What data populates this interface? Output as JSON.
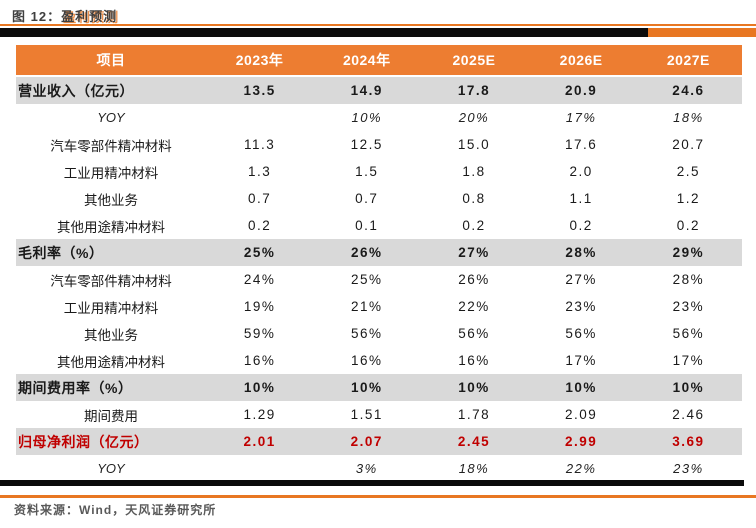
{
  "figure": {
    "label": "图 12：",
    "title": "盈利预测"
  },
  "table": {
    "columns": [
      "项目",
      "2023年",
      "2024年",
      "2025E",
      "2026E",
      "2027E"
    ],
    "rows": [
      {
        "label": "营业收入（亿元）",
        "type": "section",
        "values": [
          "13.5",
          "14.9",
          "17.8",
          "20.9",
          "24.6"
        ]
      },
      {
        "label": "YOY",
        "type": "yoy",
        "values": [
          "",
          "10%",
          "20%",
          "17%",
          "18%"
        ]
      },
      {
        "label": "汽车零部件精冲材料",
        "type": "sub",
        "values": [
          "11.3",
          "12.5",
          "15.0",
          "17.6",
          "20.7"
        ]
      },
      {
        "label": "工业用精冲材料",
        "type": "sub",
        "values": [
          "1.3",
          "1.5",
          "1.8",
          "2.0",
          "2.5"
        ]
      },
      {
        "label": "其他业务",
        "type": "sub",
        "values": [
          "0.7",
          "0.7",
          "0.8",
          "1.1",
          "1.2"
        ]
      },
      {
        "label": "其他用途精冲材料",
        "type": "sub",
        "values": [
          "0.2",
          "0.1",
          "0.2",
          "0.2",
          "0.2"
        ]
      },
      {
        "label": "毛利率（%）",
        "type": "section",
        "values": [
          "25%",
          "26%",
          "27%",
          "28%",
          "29%"
        ]
      },
      {
        "label": "汽车零部件精冲材料",
        "type": "sub",
        "values": [
          "24%",
          "25%",
          "26%",
          "27%",
          "28%"
        ]
      },
      {
        "label": "工业用精冲材料",
        "type": "sub",
        "values": [
          "19%",
          "21%",
          "22%",
          "23%",
          "23%"
        ]
      },
      {
        "label": "其他业务",
        "type": "sub",
        "values": [
          "59%",
          "56%",
          "56%",
          "56%",
          "56%"
        ]
      },
      {
        "label": "其他用途精冲材料",
        "type": "sub",
        "values": [
          "16%",
          "16%",
          "16%",
          "17%",
          "17%"
        ]
      },
      {
        "label": "期间费用率（%）",
        "type": "section",
        "values": [
          "10%",
          "10%",
          "10%",
          "10%",
          "10%"
        ]
      },
      {
        "label": "期间费用",
        "type": "sub",
        "values": [
          "1.29",
          "1.51",
          "1.78",
          "2.09",
          "2.46"
        ]
      },
      {
        "label": "归母净利润（亿元）",
        "type": "section-red",
        "values": [
          "2.01",
          "2.07",
          "2.45",
          "2.99",
          "3.69"
        ]
      },
      {
        "label": "YOY",
        "type": "yoy",
        "values": [
          "",
          "3%",
          "18%",
          "22%",
          "23%"
        ]
      }
    ]
  },
  "footer": {
    "source": "资料来源：Wind，天风证券研究所"
  },
  "colors": {
    "accent_orange": "#ed7d31",
    "rule_orange": "#e87722",
    "row_gray": "#d9d9d9",
    "highlight_red": "#c00000",
    "rule_black": "#0b0b0b"
  }
}
